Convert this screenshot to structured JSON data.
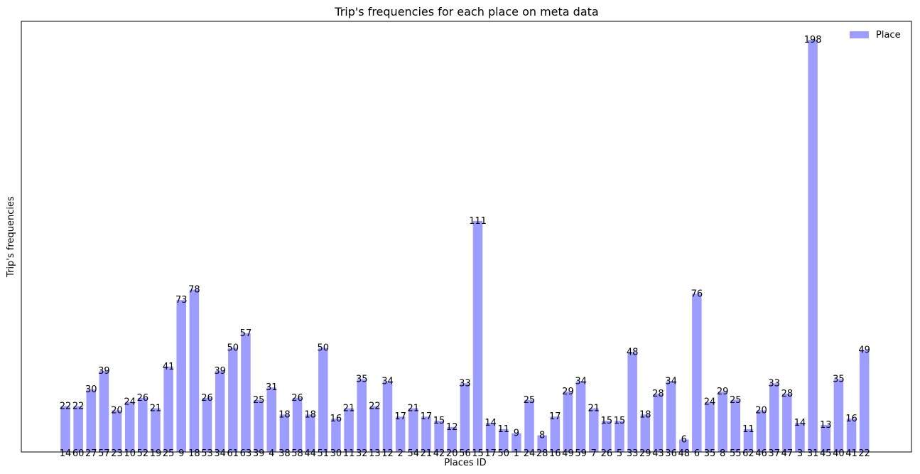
{
  "chart_data": {
    "type": "bar",
    "title": "Trip's frequencies for each place on meta data",
    "xlabel": "Places ID",
    "ylabel": "Trip's frequencies",
    "ylim": [
      0,
      202
    ],
    "grid": false,
    "legend_position": "top-right",
    "series": [
      {
        "name": "Place",
        "color": "#9d9dff",
        "categories": [
          "14",
          "60",
          "27",
          "57",
          "23",
          "10",
          "52",
          "19",
          "25",
          "9",
          "18",
          "53",
          "34",
          "61",
          "63",
          "39",
          "4",
          "38",
          "58",
          "44",
          "51",
          "30",
          "11",
          "32",
          "13",
          "12",
          "2",
          "54",
          "21",
          "42",
          "20",
          "56",
          "15",
          "17",
          "50",
          "1",
          "24",
          "28",
          "16",
          "49",
          "59",
          "7",
          "26",
          "5",
          "33",
          "29",
          "43",
          "36",
          "48",
          "6",
          "35",
          "8",
          "55",
          "62",
          "46",
          "37",
          "47",
          "3",
          "31",
          "45",
          "40",
          "41",
          "22"
        ],
        "values": [
          22,
          22,
          30,
          39,
          20,
          24,
          26,
          21,
          41,
          73,
          78,
          26,
          39,
          50,
          57,
          25,
          31,
          18,
          26,
          18,
          50,
          16,
          21,
          35,
          22,
          34,
          17,
          21,
          17,
          15,
          12,
          33,
          111,
          14,
          11,
          9,
          25,
          8,
          17,
          29,
          34,
          21,
          15,
          15,
          48,
          18,
          28,
          34,
          6,
          76,
          24,
          29,
          25,
          11,
          20,
          33,
          28,
          14,
          198,
          13,
          35,
          16,
          49
        ]
      }
    ]
  }
}
